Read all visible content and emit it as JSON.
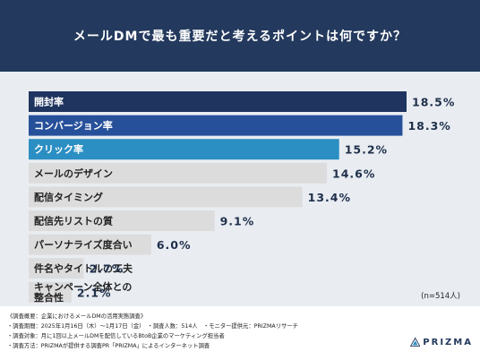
{
  "title": "メールDMで最も重要だと考えるポイントは何ですか？",
  "n_note": "(n=514人)",
  "notes": [
    "《調査概要：企業におけるメールDMの活用実態調査》",
    "・調査期間：2025年1月16日（木）～1月17日（金）　・調査人数：514人　・モニター提供元：PRIZMAリサーチ",
    "・調査対象：月に1回以上メールDMを配信しているBtoB企業のマーケティング担当者",
    "・調査方法：PRIZMAが提供する調査PR「PRIZMA」によるインターネット調査"
  ],
  "logo_text": "PRIZMA",
  "chart_data": {
    "type": "bar",
    "orientation": "horizontal",
    "unit": "%",
    "categories": [
      "開封率",
      "コンバージョン率",
      "クリック率",
      "メールのデザイン",
      "配信タイミング",
      "配信先リストの質",
      "パーソナライズ度合い",
      "件名やタイトルの工夫",
      "キャンペーン全体との整合性"
    ],
    "category_lines": [
      [
        "開封率"
      ],
      [
        "コンバージョン率"
      ],
      [
        "クリック率"
      ],
      [
        "メールのデザイン"
      ],
      [
        "配信タイミング"
      ],
      [
        "配信先リストの質"
      ],
      [
        "パーソナライズ度合い"
      ],
      [
        "件名やタイトルの工夫"
      ],
      [
        "キャンペーン全体との",
        "整合性"
      ]
    ],
    "values": [
      18.5,
      18.3,
      15.2,
      14.6,
      13.4,
      9.1,
      6.0,
      2.7,
      2.1
    ],
    "value_labels": [
      "18.5%",
      "18.3%",
      "15.2%",
      "14.6%",
      "13.4%",
      "9.1%",
      "6.0%",
      "2.7%",
      "2.1%"
    ],
    "bar_colors": [
      "#1f3560",
      "#27509a",
      "#2b8fc3",
      "#dcdcdc",
      "#dcdcdc",
      "#dcdcdc",
      "#dcdcdc",
      "#dcdcdc",
      "#dcdcdc"
    ],
    "label_colors": [
      "#ffffff",
      "#ffffff",
      "#ffffff",
      "#222222",
      "#222222",
      "#222222",
      "#222222",
      "#222222",
      "#222222"
    ],
    "xlim": [
      0,
      18.5
    ]
  }
}
